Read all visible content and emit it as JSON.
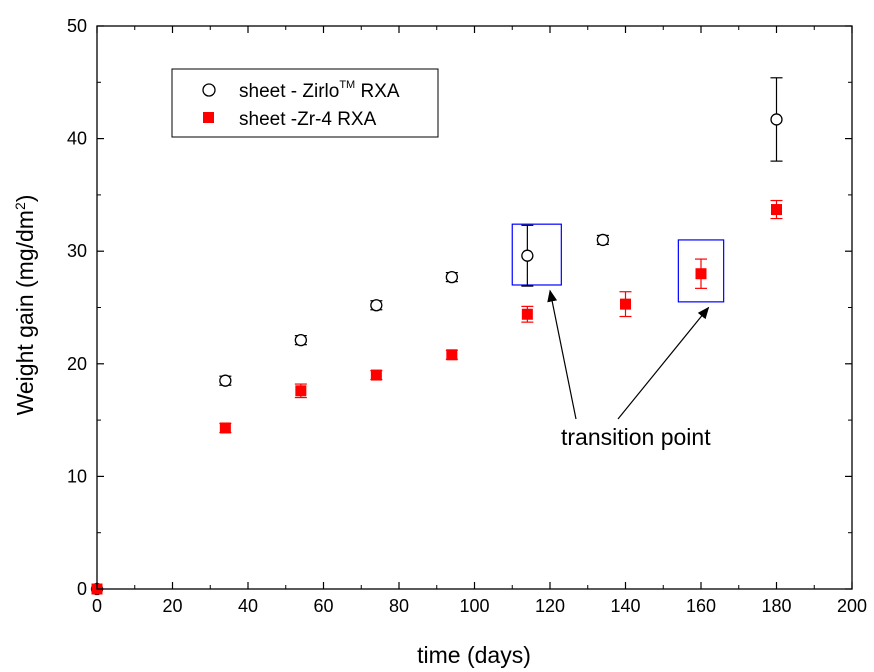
{
  "chart_data": {
    "type": "scatter",
    "xlabel": "time (days)",
    "ylabel": {
      "text": "Weight gain (mg/dm",
      "sup": "2",
      "close": ")"
    },
    "xlim": [
      0,
      200
    ],
    "ylim": [
      0,
      50
    ],
    "x_ticks": [
      0,
      20,
      40,
      60,
      80,
      100,
      120,
      140,
      160,
      180,
      200
    ],
    "y_ticks": [
      0,
      10,
      20,
      30,
      40,
      50
    ],
    "grid": false,
    "legend_position": "top-left",
    "series": [
      {
        "name": "sheet - Zirlo",
        "name_sup": "TM",
        "name_suffix": " RXA",
        "marker": "open-circle",
        "color": "#000000",
        "points": [
          {
            "x": 0,
            "y": 0,
            "err": 0
          },
          {
            "x": 34,
            "y": 18.5,
            "err": 0.4
          },
          {
            "x": 54,
            "y": 22.1,
            "err": 0.4
          },
          {
            "x": 74,
            "y": 25.2,
            "err": 0.4
          },
          {
            "x": 94,
            "y": 27.7,
            "err": 0.4
          },
          {
            "x": 114,
            "y": 29.6,
            "err": 2.7
          },
          {
            "x": 134,
            "y": 31.0,
            "err": 0.4
          },
          {
            "x": 180,
            "y": 41.7,
            "err": 3.7
          }
        ]
      },
      {
        "name": "sheet -Zr-4 RXA",
        "marker": "filled-square",
        "color": "#ff0000",
        "points": [
          {
            "x": 0,
            "y": 0,
            "err": 0
          },
          {
            "x": 34,
            "y": 14.3,
            "err": 0.4
          },
          {
            "x": 54,
            "y": 17.6,
            "err": 0.6
          },
          {
            "x": 74,
            "y": 19.0,
            "err": 0.4
          },
          {
            "x": 94,
            "y": 20.8,
            "err": 0.4
          },
          {
            "x": 114,
            "y": 24.4,
            "err": 0.7
          },
          {
            "x": 140,
            "y": 25.3,
            "err": 1.1
          },
          {
            "x": 160,
            "y": 28.0,
            "err": 1.3
          },
          {
            "x": 180,
            "y": 33.7,
            "err": 0.8
          }
        ]
      }
    ],
    "annotation": {
      "text": "transition point",
      "box_color": "#0000ff",
      "boxes": [
        {
          "x0": 110,
          "x1": 123,
          "y0": 27.0,
          "y1": 32.4
        },
        {
          "x0": 154,
          "x1": 166,
          "y0": 25.5,
          "y1": 31.0
        }
      ],
      "arrow_targets": [
        {
          "x": 120,
          "y": 26.5
        },
        {
          "x": 162,
          "y": 25.0
        }
      ]
    }
  }
}
